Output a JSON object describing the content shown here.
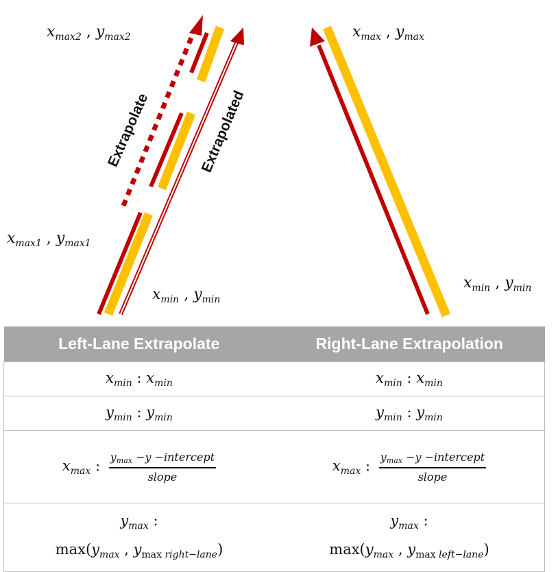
{
  "labels": {
    "left_max2": {
      "var_x": "x",
      "sub_x": "max2",
      "sep": " , ",
      "var_y": "y",
      "sub_y": "max2"
    },
    "left_max1": {
      "var_x": "x",
      "sub_x": "max1",
      "sep": " , ",
      "var_y": "y",
      "sub_y": "max1"
    },
    "left_min": {
      "var_x": "x",
      "sub_x": "min",
      "sep": " , ",
      "var_y": "y",
      "sub_y": "min"
    },
    "right_max": {
      "var_x": "x",
      "sub_x": "max",
      "sep": " , ",
      "var_y": "y",
      "sub_y": "max"
    },
    "right_min": {
      "var_x": "x",
      "sub_x": "min",
      "sep": " , ",
      "var_y": "y",
      "sub_y": "min"
    },
    "extrapolate": "Extrapolate",
    "extrapolated": "Extrapolated"
  },
  "colors": {
    "lane_yellow": "#ffc000",
    "arrow_red": "#c00000",
    "header_gray": "#a6a6a6"
  },
  "table": {
    "headers": [
      "Left-Lane Extrapolate",
      "Right-Lane Extrapolation"
    ],
    "rows": {
      "xmin": {
        "left": {
          "a": "x",
          "a_sub": "min",
          "colon": " : ",
          "b": "x",
          "b_sub": "min"
        },
        "right": {
          "a": "x",
          "a_sub": "min",
          "colon": " : ",
          "b": "x",
          "b_sub": "min"
        }
      },
      "ymin": {
        "left": {
          "a": "y",
          "a_sub": "min",
          "colon": " : ",
          "b": "y",
          "b_sub": "min"
        },
        "right": {
          "a": "y",
          "a_sub": "min",
          "colon": " : ",
          "b": "y",
          "b_sub": "min"
        }
      },
      "xmax": {
        "left": {
          "a": "x",
          "a_sub": "max",
          "colon": " : ",
          "num_y": "y",
          "num_sub": "max",
          "num_rest": " −y −intercept",
          "den": "slope"
        },
        "right": {
          "a": "x",
          "a_sub": "max",
          "colon": " : ",
          "num_y": "y",
          "num_sub": "max",
          "num_rest": " −y −intercept",
          "den": "slope"
        }
      },
      "ymax": {
        "left": {
          "a": "y",
          "a_sub": "max",
          "colon": " :",
          "fn": "max⁡(",
          "y1": "y",
          "y1_sub": "max",
          "comma": " , ",
          "y2": "y",
          "y2_sub1": "max",
          "y2_sub2": " right−lane",
          "close": ")"
        },
        "right": {
          "a": "y",
          "a_sub": "max",
          "colon": " :",
          "fn": "max⁡(",
          "y1": "y",
          "y1_sub": "max",
          "comma": " , ",
          "y2": "y",
          "y2_sub1": "max",
          "y2_sub2": " left−lane",
          "close": ")"
        }
      }
    }
  }
}
